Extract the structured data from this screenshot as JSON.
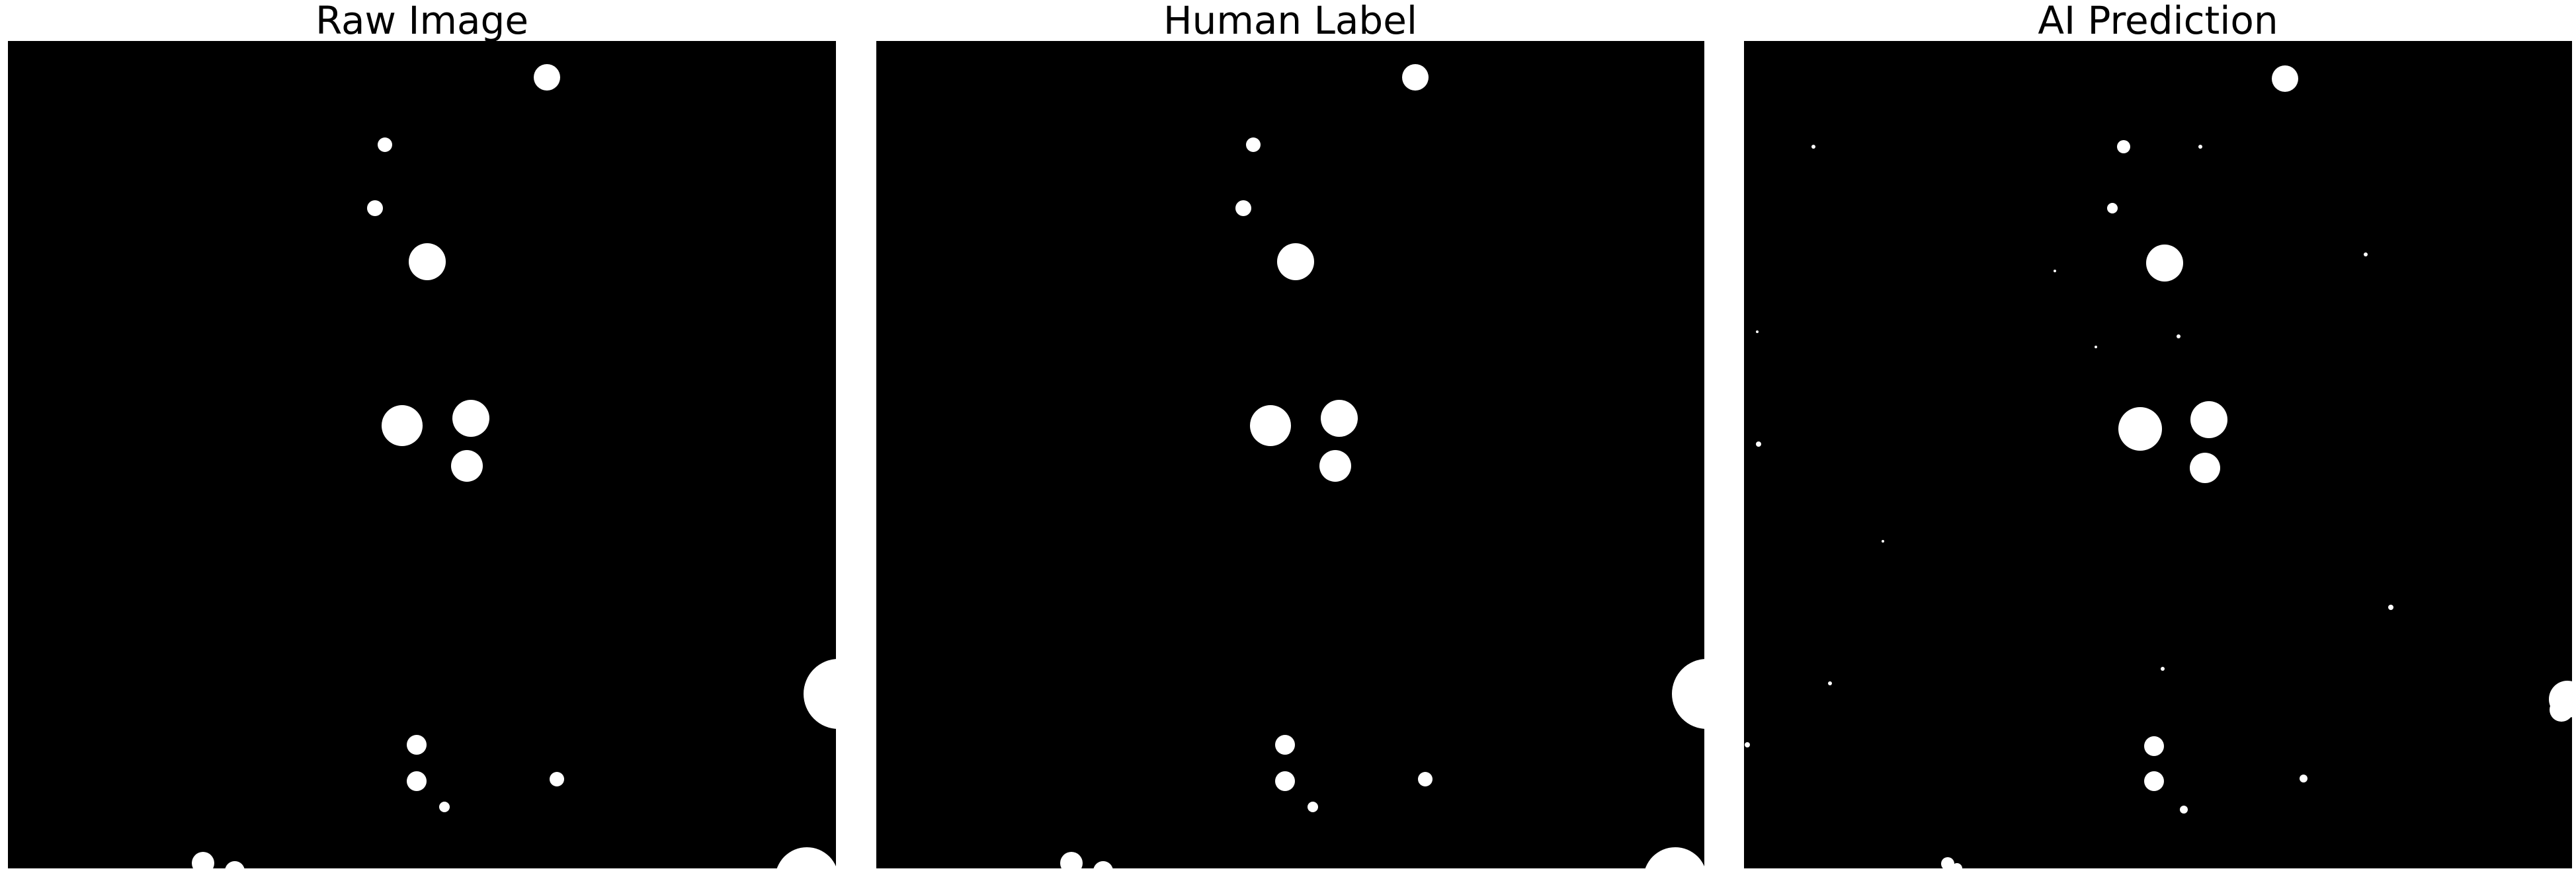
{
  "panels": [
    {
      "id": "raw",
      "title": "Raw Image"
    },
    {
      "id": "human",
      "title": "Human Label"
    },
    {
      "id": "ai",
      "title": "AI Prediction"
    }
  ],
  "colors": {
    "background": "#ffffff",
    "image_background": "#000000",
    "blob": "#ffffff"
  }
}
